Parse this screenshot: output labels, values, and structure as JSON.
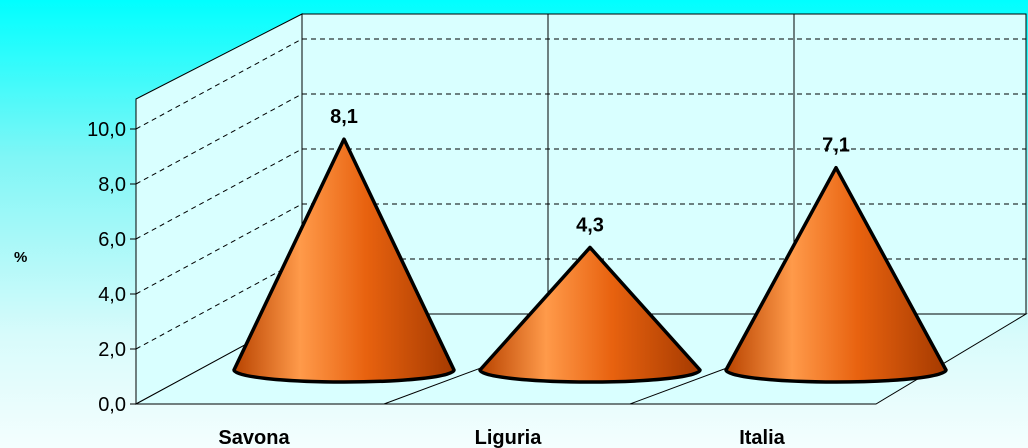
{
  "chart_data": {
    "type": "bar",
    "bar_shape": "cone",
    "categories": [
      "Savona",
      "Liguria",
      "Italia"
    ],
    "values": [
      8.1,
      4.3,
      7.1
    ],
    "value_labels": [
      "8,1",
      "4,3",
      "7,1"
    ],
    "ylabel": "%",
    "ylim": [
      0,
      10
    ],
    "yticks": [
      "0,0",
      "2,0",
      "4,0",
      "6,0",
      "8,0",
      "10,0"
    ],
    "grid": true,
    "legend": "none",
    "colors": {
      "cone": "#e8620f",
      "cone_light": "#ff9a4a",
      "cone_dark": "#a53a00",
      "wall": "#d9ffff"
    }
  }
}
